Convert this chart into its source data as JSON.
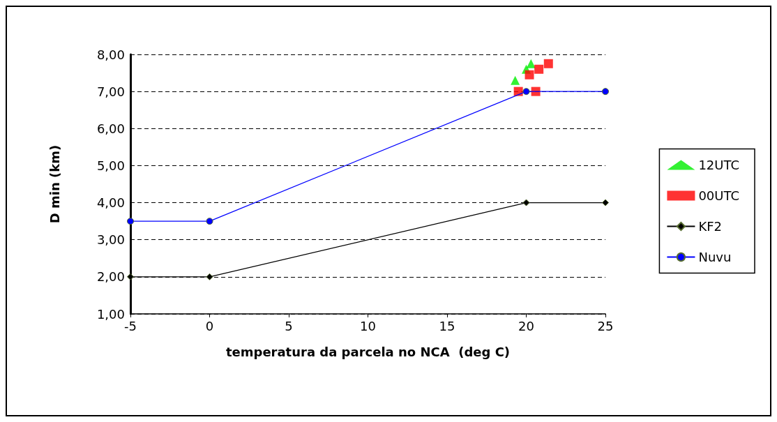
{
  "chart_data": {
    "type": "line",
    "xlabel": "temperatura da parcela no NCA  (deg C)",
    "ylabel": "D min (km)",
    "xlim": [
      -5,
      25
    ],
    "xticks": [
      -5,
      0,
      5,
      10,
      15,
      20,
      25
    ],
    "ylim": [
      1,
      8
    ],
    "yticks": [
      {
        "value": 1,
        "label": "1,00"
      },
      {
        "value": 2,
        "label": "2,00"
      },
      {
        "value": 3,
        "label": "3,00"
      },
      {
        "value": 4,
        "label": "4,00"
      },
      {
        "value": 5,
        "label": "5,00"
      },
      {
        "value": 6,
        "label": "6,00"
      },
      {
        "value": 7,
        "label": "7,00"
      },
      {
        "value": 8,
        "label": "8,00"
      }
    ],
    "grid": "y",
    "legend": "right",
    "series": [
      {
        "name": "12UTC",
        "type": "scatter",
        "marker": "triangle",
        "color": "#00ee00",
        "x": [
          19.3,
          20.0,
          20.3
        ],
        "values": [
          7.3,
          7.6,
          7.75
        ]
      },
      {
        "name": "00UTC",
        "type": "scatter",
        "marker": "square",
        "color": "#ff0000",
        "x": [
          19.5,
          20.6,
          20.2,
          20.8,
          21.4
        ],
        "values": [
          7.0,
          7.0,
          7.45,
          7.6,
          7.75
        ]
      },
      {
        "name": "KF2",
        "marker": "diamond",
        "color": "#000000",
        "x": [
          -5,
          0,
          20,
          25
        ],
        "values": [
          2,
          2,
          4,
          4
        ]
      },
      {
        "name": "Nuvu",
        "marker": "circle",
        "color": "#0000ff",
        "x": [
          -5,
          0,
          20,
          25
        ],
        "values": [
          3.5,
          3.5,
          7,
          7
        ]
      }
    ]
  }
}
